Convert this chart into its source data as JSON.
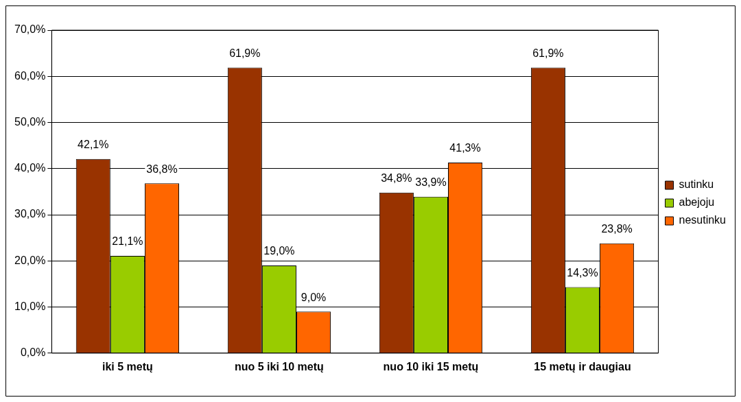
{
  "chart_data": {
    "type": "bar",
    "categories": [
      "iki 5 metų",
      "nuo 5 iki 10 metų",
      "nuo 10 iki 15 metų",
      "15 metų ir daugiau"
    ],
    "series": [
      {
        "name": "sutinku",
        "color": "#993300",
        "values": [
          42.1,
          61.9,
          34.8,
          61.9
        ],
        "value_labels": [
          "42,1%",
          "61,9%",
          "34,8%",
          "61,9%"
        ]
      },
      {
        "name": "abejoju",
        "color": "#99cc00",
        "values": [
          21.1,
          19.0,
          33.9,
          14.3
        ],
        "value_labels": [
          "21,1%",
          "19,0%",
          "33,9%",
          "14,3%"
        ]
      },
      {
        "name": "nesutinku",
        "color": "#ff6600",
        "values": [
          36.8,
          9.0,
          41.3,
          23.8
        ],
        "value_labels": [
          "36,8%",
          "9,0%",
          "41,3%",
          "23,8%"
        ]
      }
    ],
    "ylim": [
      0,
      70
    ],
    "yticks": [
      {
        "value": 0,
        "label": "0,0%"
      },
      {
        "value": 10,
        "label": "10,0%"
      },
      {
        "value": 20,
        "label": "20,0%"
      },
      {
        "value": 30,
        "label": "30,0%"
      },
      {
        "value": 40,
        "label": "40,0%"
      },
      {
        "value": 50,
        "label": "50,0%"
      },
      {
        "value": 60,
        "label": "60,0%"
      },
      {
        "value": 70,
        "label": "70,0%"
      }
    ],
    "grid": "y",
    "legend": "right"
  }
}
